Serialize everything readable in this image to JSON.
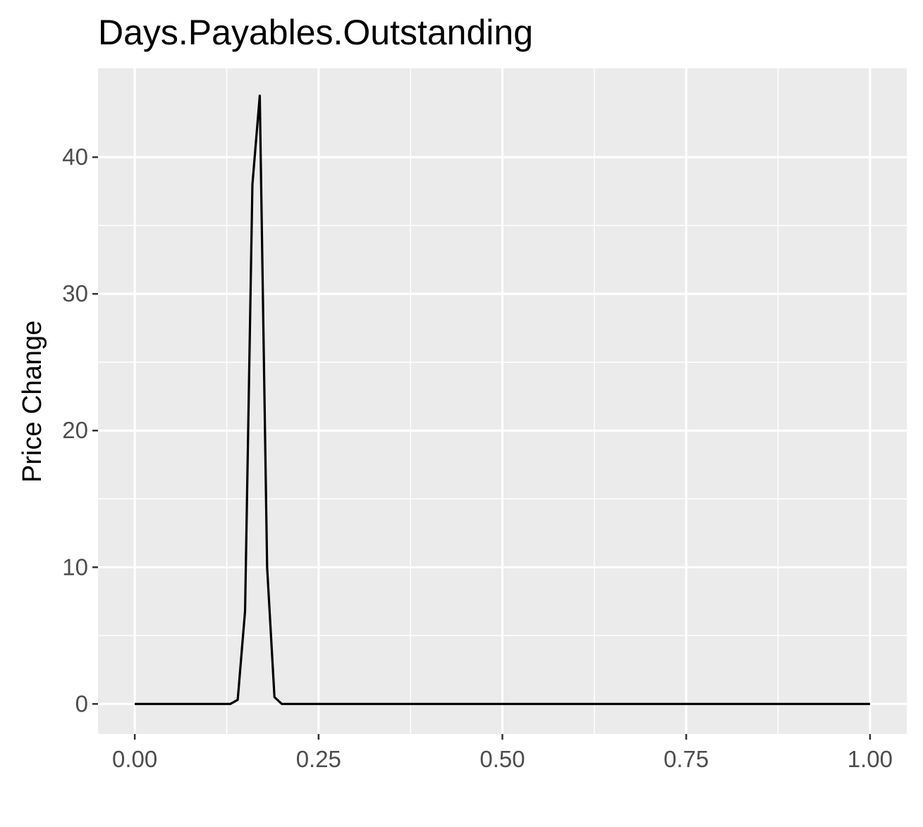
{
  "chart_data": {
    "type": "line",
    "title": "Days.Payables.Outstanding",
    "xlabel": "",
    "ylabel": "Price Change",
    "xlim": [
      -0.05,
      1.05
    ],
    "ylim": [
      -2.2,
      46.5
    ],
    "x_ticks": [
      0.0,
      0.25,
      0.5,
      0.75,
      1.0
    ],
    "x_tick_labels": [
      "0.00",
      "0.25",
      "0.50",
      "0.75",
      "1.00"
    ],
    "y_ticks": [
      0,
      10,
      20,
      30,
      40
    ],
    "y_tick_labels": [
      "0",
      "10",
      "20",
      "30",
      "40"
    ],
    "grid": true,
    "background": "#ebebeb",
    "line_color": "#000000",
    "series": [
      {
        "x": [
          0.0,
          0.13,
          0.14,
          0.15,
          0.16,
          0.17,
          0.18,
          0.19,
          0.2,
          1.0
        ],
        "y": [
          0,
          0,
          0.3,
          6.8,
          38.0,
          44.5,
          10.0,
          0.5,
          0,
          0
        ]
      }
    ]
  }
}
